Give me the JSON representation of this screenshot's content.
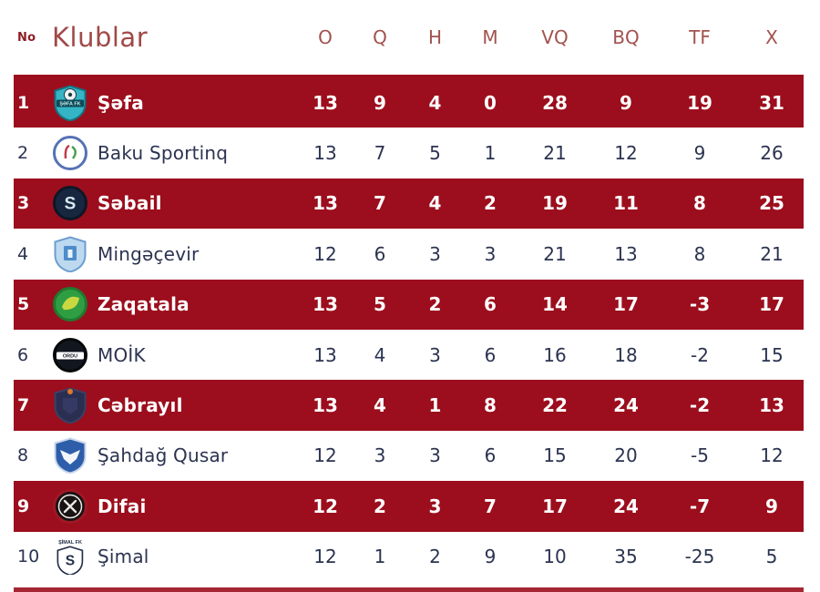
{
  "header": {
    "no_label": "No",
    "club_label": "Klublar",
    "stat_columns": [
      "O",
      "Q",
      "H",
      "M",
      "VQ",
      "BQ",
      "TF",
      "X"
    ]
  },
  "colors": {
    "highlight_row": "#9C0E1D",
    "header_text": "#A04A48",
    "no_label_text": "#8E1F26",
    "row_text": "#2B3350",
    "highlight_text": "#FFFFFF",
    "divider": "#9C0E1D"
  },
  "rows": [
    {
      "pos": "1",
      "club": "Şəfa",
      "highlight": true,
      "logo": {
        "name": "sefa-club-logo",
        "type": "shield",
        "bg": "#35b4c6",
        "ring": "#15727f",
        "detail": "ball",
        "band": {
          "text": "ŞƏFA FK",
          "bg": "#0d4a56",
          "color": "#bfe8ee"
        }
      },
      "stats": [
        "13",
        "9",
        "4",
        "0",
        "28",
        "9",
        "19",
        "31"
      ]
    },
    {
      "pos": "2",
      "club": "Baku Sportinq",
      "highlight": false,
      "logo": {
        "name": "baku-sportinq-club-logo",
        "type": "circle",
        "bg": "#ffffff",
        "ring": "#5572b5",
        "detail": "mark"
      },
      "stats": [
        "13",
        "7",
        "5",
        "1",
        "21",
        "12",
        "9",
        "26"
      ]
    },
    {
      "pos": "3",
      "club": "Səbail",
      "highlight": true,
      "logo": {
        "name": "sebail-club-logo",
        "type": "circle",
        "bg": "#17273f",
        "ring": "#0d1726",
        "letter": "S",
        "letterColor": "#d8e9f5"
      },
      "stats": [
        "13",
        "7",
        "4",
        "2",
        "19",
        "11",
        "8",
        "25"
      ]
    },
    {
      "pos": "4",
      "club": "Mingəçevir",
      "highlight": false,
      "logo": {
        "name": "mingecevir-club-logo",
        "type": "shield",
        "bg": "#bcd9f0",
        "ring": "#6d9ecf",
        "detail": "tower",
        "detailColor": "#4f8cc9"
      },
      "stats": [
        "12",
        "6",
        "3",
        "3",
        "21",
        "13",
        "8",
        "21"
      ]
    },
    {
      "pos": "5",
      "club": "Zaqatala",
      "highlight": true,
      "logo": {
        "name": "zaqatala-club-logo",
        "type": "circle",
        "bg": "#2f9e42",
        "ring": "#1f7a30",
        "detail": "leaf",
        "detailColor": "#c9d841"
      },
      "stats": [
        "13",
        "5",
        "2",
        "6",
        "14",
        "17",
        "-3",
        "17"
      ]
    },
    {
      "pos": "6",
      "club": "MOİK",
      "highlight": false,
      "logo": {
        "name": "moik-club-logo",
        "type": "circle",
        "bg": "#12161e",
        "ring": "#060809",
        "band": {
          "text": "ORDU",
          "bg": "#ffffff",
          "color": "#12161e"
        }
      },
      "stats": [
        "13",
        "4",
        "3",
        "6",
        "16",
        "18",
        "-2",
        "15"
      ]
    },
    {
      "pos": "7",
      "club": "Cəbrayıl",
      "highlight": true,
      "logo": {
        "name": "cebrayil-club-logo",
        "type": "shield",
        "bg": "#2a2f52",
        "ring": "#3a4066",
        "detail": "flame",
        "detailColor": "#e0762c"
      },
      "stats": [
        "13",
        "4",
        "1",
        "8",
        "22",
        "24",
        "-2",
        "13"
      ]
    },
    {
      "pos": "8",
      "club": "Şahdağ Qusar",
      "highlight": false,
      "logo": {
        "name": "sahdag-qusar-club-logo",
        "type": "shield",
        "bg": "#2e5ea9",
        "ring": "#c9d6ea",
        "detail": "eagle",
        "detailColor": "#f2f6fb"
      },
      "stats": [
        "12",
        "3",
        "3",
        "6",
        "15",
        "20",
        "-5",
        "12"
      ]
    },
    {
      "pos": "9",
      "club": "Difai",
      "highlight": true,
      "logo": {
        "name": "difai-club-logo",
        "type": "circle",
        "bg": "#181314",
        "ring": "#a01724",
        "detail": "swords",
        "detailColor": "#e9e6e4"
      },
      "stats": [
        "12",
        "2",
        "3",
        "7",
        "17",
        "24",
        "-7",
        "9"
      ]
    },
    {
      "pos": "10",
      "club": "Şimal",
      "highlight": false,
      "logo": {
        "name": "simal-club-logo",
        "type": "shield",
        "bg": "#ffffff",
        "ring": "#232e4a",
        "letter": "S",
        "letterColor": "#232e4a",
        "caption": {
          "text": "ŞİMAL FK",
          "color": "#232e4a"
        }
      },
      "stats": [
        "12",
        "1",
        "2",
        "9",
        "10",
        "35",
        "-25",
        "5"
      ]
    }
  ]
}
